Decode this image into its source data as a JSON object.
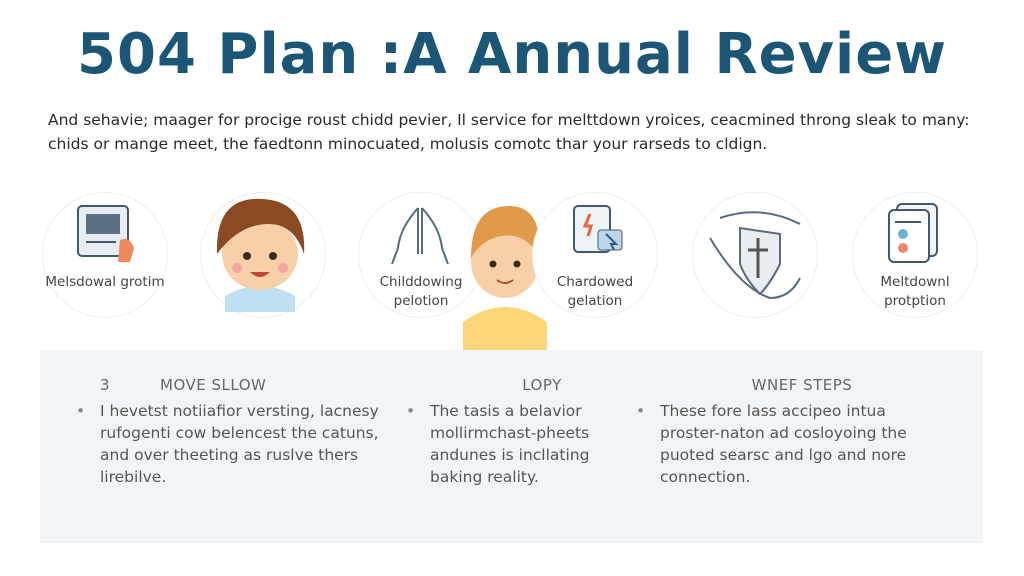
{
  "title": "504  Plan :A Annual Review",
  "intro": "And sehavie; maager for procige roust chidd pevier, Il service for melttdown yroices, ceacmined throng sleak to many: chids or mange meet, the faedtonn minocuated, molusis comotc thar your rarseds to cldign.",
  "icons": [
    {
      "icon": "document-hand-icon",
      "label": "Melsdowal grotim"
    },
    {
      "icon": "child-avatar-icon",
      "label": ""
    },
    {
      "icon": "praying-hands-icon",
      "label": "Childdowing pelotion"
    },
    {
      "icon": "boy-avatar-icon",
      "label": ""
    },
    {
      "icon": "tablet-cursor-icon",
      "label": "Chardowed gelation"
    },
    {
      "icon": "protective-hands-icon",
      "label": ""
    },
    {
      "icon": "cards-icon",
      "label": "Meltdownl protption"
    }
  ],
  "columns": [
    {
      "number": "3",
      "heading": "MOVE SLLOW",
      "text": "I hevetst notiiafior versting, lacnesy rufogenti cow belencest the catuns, and over theeting as ruslve thers lirebilve."
    },
    {
      "number": "",
      "heading": "LOPY",
      "text": "The tasis a belavior mollirmchast-pheets andunes is incllating baking reality."
    },
    {
      "number": "",
      "heading": "WNEF STEPS",
      "text": "These fore lass accipeo intua proster-naton  ad cosloyoing the puoted searsc and lgo and nore connection."
    }
  ],
  "colors": {
    "title": "#1b5676",
    "panel": "#f2f5f8"
  }
}
